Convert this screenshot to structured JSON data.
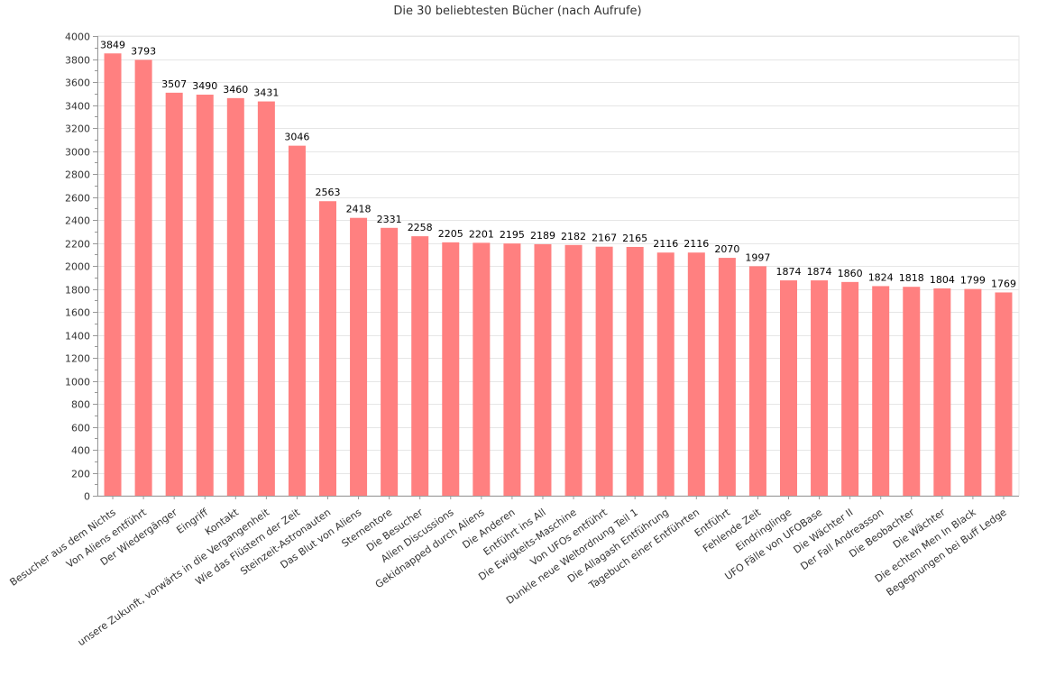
{
  "chart_data": {
    "type": "bar",
    "title": "Die 30 beliebtesten Bücher (nach Aufrufe)",
    "xlabel": "",
    "ylabel": "",
    "ylim": [
      0,
      4000
    ],
    "ytick_step": 200,
    "grid": true,
    "bar_color": "#ff8080",
    "categories": [
      "Besucher aus dem Nichts",
      "Von Aliens entführt",
      "Der Wiedergänger",
      "Eingriff",
      "Kontakt",
      "unsere Zukunft, vorwärts in die Vergangenheit",
      "Wie das Flüstern der Zeit",
      "Steinzeit-Astronauten",
      "Das Blut von Aliens",
      "Sternentore",
      "Die Besucher",
      "Alien Discussions",
      "Gekidnapped durch Aliens",
      "Die Anderen",
      "Entführt ins All",
      "Die Ewigkeits-Maschine",
      "Von UFOs entführt",
      "Dunkle neue Weltordnung Teil 1",
      "Die Allagash Entführung",
      "Tagebuch einer Entführten",
      "Entführt",
      "Fehlende Zeit",
      "Eindringlinge",
      "UFO Fälle von UFOBase",
      "Die Wächter II",
      "Der Fall Andreasson",
      "Die Beobachter",
      "Die Wächter",
      "Die echten Men In Black",
      "Begegnungen bei Buff Ledge"
    ],
    "values": [
      3849,
      3793,
      3507,
      3490,
      3460,
      3431,
      3046,
      2563,
      2418,
      2331,
      2258,
      2205,
      2201,
      2195,
      2189,
      2182,
      2167,
      2165,
      2116,
      2116,
      2070,
      1997,
      1874,
      1874,
      1860,
      1824,
      1818,
      1804,
      1799,
      1769
    ]
  }
}
